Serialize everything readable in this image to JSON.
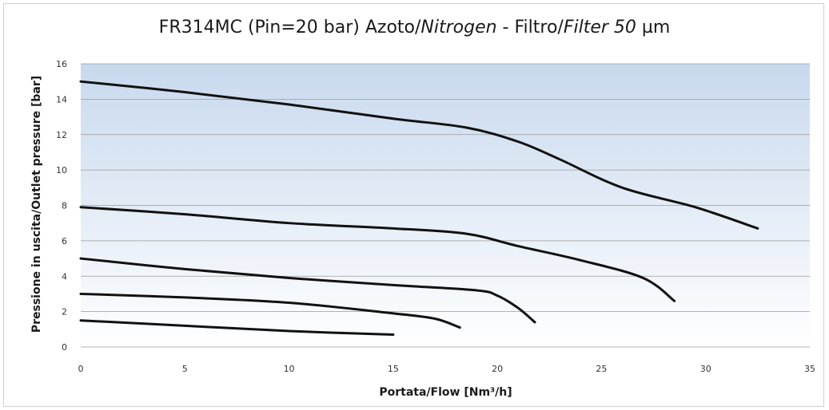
{
  "chart_data": {
    "type": "line",
    "title_parts": [
      {
        "text": "FR314MC (Pin=20 bar) Azoto/",
        "italic": false
      },
      {
        "text": "Nitrogen",
        "italic": true
      },
      {
        "text": " - Filtro/",
        "italic": false
      },
      {
        "text": "Filter 50",
        "italic": true
      },
      {
        "text": " µm",
        "italic": false
      }
    ],
    "xlabel": "Portata/Flow [Nm³/h]",
    "ylabel": "Pressione in uscita/Outlet pressure [bar]",
    "xlim": [
      0,
      35
    ],
    "ylim": [
      0,
      16
    ],
    "xticks": [
      0,
      5,
      10,
      15,
      20,
      25,
      30,
      35
    ],
    "yticks": [
      0,
      2,
      4,
      6,
      8,
      10,
      12,
      14,
      16
    ],
    "grid": true,
    "series": [
      {
        "x": [
          0,
          5,
          10,
          15,
          18.5,
          21,
          23,
          26,
          29.5,
          32.5
        ],
        "y": [
          15,
          14.4,
          13.7,
          12.9,
          12.4,
          11.6,
          10.6,
          9,
          7.9,
          6.7
        ]
      },
      {
        "x": [
          0,
          5,
          10,
          15,
          18.5,
          21,
          24,
          27,
          28.5
        ],
        "y": [
          7.9,
          7.5,
          7.0,
          6.7,
          6.4,
          5.7,
          4.9,
          3.9,
          2.6
        ]
      },
      {
        "x": [
          0,
          5,
          10,
          15,
          19,
          20,
          21,
          21.8
        ],
        "y": [
          5.0,
          4.4,
          3.9,
          3.5,
          3.2,
          2.9,
          2.2,
          1.4
        ]
      },
      {
        "x": [
          0,
          5,
          10,
          15,
          17,
          18.2
        ],
        "y": [
          3.0,
          2.8,
          2.5,
          1.9,
          1.6,
          1.1
        ]
      },
      {
        "x": [
          0,
          5,
          10,
          15
        ],
        "y": [
          1.5,
          1.2,
          0.9,
          0.7
        ]
      }
    ],
    "line_color": "#111111",
    "plot_gradient": [
      "#c8d9ee",
      "#ffffff"
    ],
    "grid_color": "#9a9a9a"
  }
}
